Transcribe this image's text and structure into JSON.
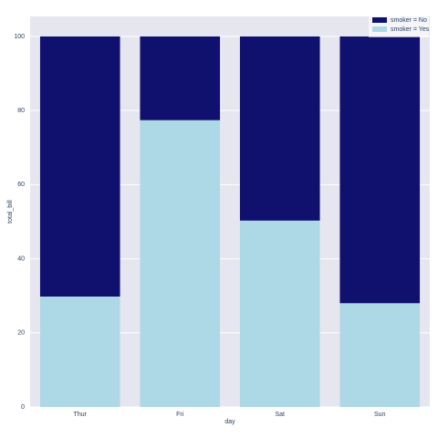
{
  "chart_data": {
    "type": "stacked_bar",
    "x_label": "day",
    "y_label": "total_bill",
    "categories": [
      "Thur",
      "Fri",
      "Sat",
      "Sun"
    ],
    "series": [
      {
        "name": "smoker = No",
        "color": "#10106e",
        "values": [
          70.2,
          22.6,
          49.7,
          72.0
        ]
      },
      {
        "name": "smoker = Yes",
        "color": "#add8e6",
        "values": [
          29.8,
          77.4,
          50.3,
          28.0
        ]
      }
    ],
    "ylim": [
      0,
      105.4
    ],
    "yticks": [
      0,
      20,
      40,
      60,
      80,
      100
    ],
    "grid": true
  }
}
